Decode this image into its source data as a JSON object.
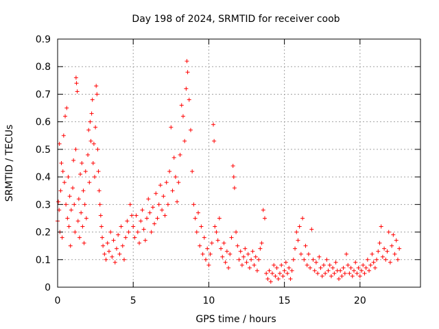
{
  "chart_data": {
    "type": "scatter",
    "title": "Day 198 of 2024, SRMTID for receiver coob",
    "xlabel": "GPS time / hours",
    "ylabel": "SRMTID / TECUs",
    "xlim": [
      0,
      24
    ],
    "ylim": [
      0,
      0.9
    ],
    "xticks": [
      0,
      5,
      10,
      15,
      20
    ],
    "yticks": [
      0,
      0.1,
      0.2,
      0.3,
      0.4,
      0.5,
      0.6,
      0.7,
      0.8,
      0.9
    ],
    "x_tick_labels": [
      "0",
      "5",
      "10",
      "15",
      "20"
    ],
    "y_tick_labels": [
      "0",
      "0.1",
      "0.2",
      "0.3",
      "0.4",
      "0.5",
      "0.6",
      "0.7",
      "0.8",
      "0.9"
    ],
    "grid": true,
    "marker": "plus",
    "color": "#ff0000",
    "series": [
      {
        "name": "SRMTID",
        "points": [
          [
            0.0,
            0.24
          ],
          [
            0.05,
            0.31
          ],
          [
            0.1,
            0.28
          ],
          [
            0.12,
            0.52
          ],
          [
            0.15,
            0.2
          ],
          [
            0.2,
            0.35
          ],
          [
            0.25,
            0.45
          ],
          [
            0.3,
            0.18
          ],
          [
            0.35,
            0.42
          ],
          [
            0.4,
            0.55
          ],
          [
            0.45,
            0.38
          ],
          [
            0.5,
            0.62
          ],
          [
            0.55,
            0.3
          ],
          [
            0.6,
            0.65
          ],
          [
            0.65,
            0.25
          ],
          [
            0.7,
            0.4
          ],
          [
            0.75,
            0.22
          ],
          [
            0.8,
            0.33
          ],
          [
            0.85,
            0.15
          ],
          [
            0.9,
            0.28
          ],
          [
            1.0,
            0.36
          ],
          [
            1.05,
            0.46
          ],
          [
            1.1,
            0.3
          ],
          [
            1.15,
            0.2
          ],
          [
            1.2,
            0.5
          ],
          [
            1.22,
            0.76
          ],
          [
            1.25,
            0.74
          ],
          [
            1.3,
            0.71
          ],
          [
            1.35,
            0.24
          ],
          [
            1.4,
            0.32
          ],
          [
            1.45,
            0.18
          ],
          [
            1.5,
            0.41
          ],
          [
            1.55,
            0.27
          ],
          [
            1.6,
            0.45
          ],
          [
            1.65,
            0.22
          ],
          [
            1.7,
            0.35
          ],
          [
            1.75,
            0.16
          ],
          [
            1.8,
            0.3
          ],
          [
            1.85,
            0.42
          ],
          [
            1.9,
            0.25
          ],
          [
            2.0,
            0.48
          ],
          [
            2.05,
            0.57
          ],
          [
            2.1,
            0.38
          ],
          [
            2.15,
            0.6
          ],
          [
            2.2,
            0.53
          ],
          [
            2.25,
            0.63
          ],
          [
            2.3,
            0.68
          ],
          [
            2.35,
            0.45
          ],
          [
            2.4,
            0.52
          ],
          [
            2.45,
            0.4
          ],
          [
            2.5,
            0.58
          ],
          [
            2.55,
            0.73
          ],
          [
            2.6,
            0.7
          ],
          [
            2.65,
            0.5
          ],
          [
            2.7,
            0.42
          ],
          [
            2.75,
            0.35
          ],
          [
            2.8,
            0.3
          ],
          [
            2.85,
            0.26
          ],
          [
            2.9,
            0.22
          ],
          [
            2.95,
            0.18
          ],
          [
            3.0,
            0.15
          ],
          [
            3.1,
            0.12
          ],
          [
            3.2,
            0.1
          ],
          [
            3.3,
            0.16
          ],
          [
            3.4,
            0.13
          ],
          [
            3.5,
            0.2
          ],
          [
            3.6,
            0.11
          ],
          [
            3.7,
            0.17
          ],
          [
            3.8,
            0.09
          ],
          [
            3.9,
            0.14
          ],
          [
            4.0,
            0.19
          ],
          [
            4.1,
            0.12
          ],
          [
            4.2,
            0.22
          ],
          [
            4.3,
            0.15
          ],
          [
            4.4,
            0.1
          ],
          [
            4.5,
            0.18
          ],
          [
            4.6,
            0.24
          ],
          [
            4.7,
            0.2
          ],
          [
            4.8,
            0.3
          ],
          [
            4.9,
            0.26
          ],
          [
            5.0,
            0.22
          ],
          [
            5.1,
            0.18
          ],
          [
            5.2,
            0.26
          ],
          [
            5.3,
            0.2
          ],
          [
            5.4,
            0.16
          ],
          [
            5.5,
            0.24
          ],
          [
            5.6,
            0.28
          ],
          [
            5.7,
            0.21
          ],
          [
            5.8,
            0.17
          ],
          [
            5.9,
            0.25
          ],
          [
            6.0,
            0.32
          ],
          [
            6.1,
            0.27
          ],
          [
            6.2,
            0.2
          ],
          [
            6.3,
            0.29
          ],
          [
            6.4,
            0.23
          ],
          [
            6.5,
            0.34
          ],
          [
            6.6,
            0.25
          ],
          [
            6.7,
            0.3
          ],
          [
            6.8,
            0.37
          ],
          [
            6.9,
            0.28
          ],
          [
            7.0,
            0.33
          ],
          [
            7.1,
            0.26
          ],
          [
            7.2,
            0.38
          ],
          [
            7.3,
            0.3
          ],
          [
            7.4,
            0.42
          ],
          [
            7.5,
            0.58
          ],
          [
            7.6,
            0.35
          ],
          [
            7.7,
            0.47
          ],
          [
            7.8,
            0.4
          ],
          [
            7.9,
            0.31
          ],
          [
            8.0,
            0.38
          ],
          [
            8.1,
            0.48
          ],
          [
            8.2,
            0.66
          ],
          [
            8.3,
            0.62
          ],
          [
            8.4,
            0.53
          ],
          [
            8.5,
            0.72
          ],
          [
            8.55,
            0.82
          ],
          [
            8.6,
            0.78
          ],
          [
            8.7,
            0.68
          ],
          [
            8.8,
            0.57
          ],
          [
            8.9,
            0.42
          ],
          [
            9.0,
            0.3
          ],
          [
            9.1,
            0.25
          ],
          [
            9.2,
            0.2
          ],
          [
            9.3,
            0.27
          ],
          [
            9.4,
            0.15
          ],
          [
            9.5,
            0.22
          ],
          [
            9.6,
            0.12
          ],
          [
            9.7,
            0.18
          ],
          [
            9.8,
            0.1
          ],
          [
            9.9,
            0.14
          ],
          [
            10.0,
            0.08
          ],
          [
            10.1,
            0.12
          ],
          [
            10.2,
            0.16
          ],
          [
            10.3,
            0.59
          ],
          [
            10.35,
            0.53
          ],
          [
            10.4,
            0.22
          ],
          [
            10.5,
            0.2
          ],
          [
            10.6,
            0.17
          ],
          [
            10.7,
            0.25
          ],
          [
            10.8,
            0.14
          ],
          [
            10.9,
            0.11
          ],
          [
            11.0,
            0.16
          ],
          [
            11.1,
            0.09
          ],
          [
            11.2,
            0.13
          ],
          [
            11.3,
            0.07
          ],
          [
            11.4,
            0.12
          ],
          [
            11.5,
            0.18
          ],
          [
            11.6,
            0.44
          ],
          [
            11.65,
            0.4
          ],
          [
            11.7,
            0.36
          ],
          [
            11.8,
            0.2
          ],
          [
            11.9,
            0.15
          ],
          [
            12.0,
            0.1
          ],
          [
            12.1,
            0.13
          ],
          [
            12.2,
            0.08
          ],
          [
            12.3,
            0.11
          ],
          [
            12.4,
            0.14
          ],
          [
            12.5,
            0.09
          ],
          [
            12.6,
            0.12
          ],
          [
            12.7,
            0.07
          ],
          [
            12.8,
            0.1
          ],
          [
            12.9,
            0.13
          ],
          [
            13.0,
            0.08
          ],
          [
            13.1,
            0.11
          ],
          [
            13.2,
            0.06
          ],
          [
            13.3,
            0.1
          ],
          [
            13.4,
            0.14
          ],
          [
            13.5,
            0.16
          ],
          [
            13.6,
            0.28
          ],
          [
            13.7,
            0.25
          ],
          [
            13.8,
            0.05
          ],
          [
            13.9,
            0.03
          ],
          [
            14.0,
            0.06
          ],
          [
            14.1,
            0.02
          ],
          [
            14.2,
            0.05
          ],
          [
            14.3,
            0.08
          ],
          [
            14.4,
            0.04
          ],
          [
            14.5,
            0.07
          ],
          [
            14.6,
            0.03
          ],
          [
            14.7,
            0.05
          ],
          [
            14.8,
            0.08
          ],
          [
            14.9,
            0.04
          ],
          [
            15.0,
            0.06
          ],
          [
            15.1,
            0.09
          ],
          [
            15.2,
            0.05
          ],
          [
            15.3,
            0.07
          ],
          [
            15.4,
            0.03
          ],
          [
            15.5,
            0.06
          ],
          [
            15.6,
            0.1
          ],
          [
            15.7,
            0.14
          ],
          [
            15.8,
            0.2
          ],
          [
            15.9,
            0.17
          ],
          [
            16.0,
            0.22
          ],
          [
            16.1,
            0.12
          ],
          [
            16.2,
            0.25
          ],
          [
            16.3,
            0.1
          ],
          [
            16.4,
            0.15
          ],
          [
            16.5,
            0.08
          ],
          [
            16.6,
            0.12
          ],
          [
            16.7,
            0.07
          ],
          [
            16.8,
            0.21
          ],
          [
            16.9,
            0.1
          ],
          [
            17.0,
            0.06
          ],
          [
            17.1,
            0.09
          ],
          [
            17.2,
            0.05
          ],
          [
            17.3,
            0.11
          ],
          [
            17.4,
            0.07
          ],
          [
            17.5,
            0.04
          ],
          [
            17.6,
            0.08
          ],
          [
            17.7,
            0.05
          ],
          [
            17.8,
            0.1
          ],
          [
            17.9,
            0.06
          ],
          [
            18.0,
            0.08
          ],
          [
            18.1,
            0.04
          ],
          [
            18.2,
            0.07
          ],
          [
            18.3,
            0.05
          ],
          [
            18.4,
            0.09
          ],
          [
            18.5,
            0.06
          ],
          [
            18.6,
            0.03
          ],
          [
            18.7,
            0.06
          ],
          [
            18.8,
            0.04
          ],
          [
            18.9,
            0.07
          ],
          [
            19.0,
            0.05
          ],
          [
            19.1,
            0.12
          ],
          [
            19.2,
            0.08
          ],
          [
            19.3,
            0.05
          ],
          [
            19.4,
            0.07
          ],
          [
            19.5,
            0.04
          ],
          [
            19.6,
            0.06
          ],
          [
            19.7,
            0.09
          ],
          [
            19.8,
            0.05
          ],
          [
            19.9,
            0.07
          ],
          [
            20.0,
            0.04
          ],
          [
            20.1,
            0.06
          ],
          [
            20.2,
            0.08
          ],
          [
            20.3,
            0.05
          ],
          [
            20.4,
            0.07
          ],
          [
            20.5,
            0.1
          ],
          [
            20.6,
            0.06
          ],
          [
            20.7,
            0.08
          ],
          [
            20.8,
            0.12
          ],
          [
            20.9,
            0.09
          ],
          [
            21.0,
            0.07
          ],
          [
            21.1,
            0.1
          ],
          [
            21.2,
            0.13
          ],
          [
            21.3,
            0.16
          ],
          [
            21.4,
            0.22
          ],
          [
            21.5,
            0.11
          ],
          [
            21.6,
            0.14
          ],
          [
            21.7,
            0.1
          ],
          [
            21.8,
            0.13
          ],
          [
            21.9,
            0.2
          ],
          [
            22.0,
            0.09
          ],
          [
            22.1,
            0.15
          ],
          [
            22.2,
            0.19
          ],
          [
            22.3,
            0.12
          ],
          [
            22.4,
            0.17
          ],
          [
            22.5,
            0.1
          ],
          [
            22.6,
            0.14
          ]
        ]
      }
    ]
  }
}
